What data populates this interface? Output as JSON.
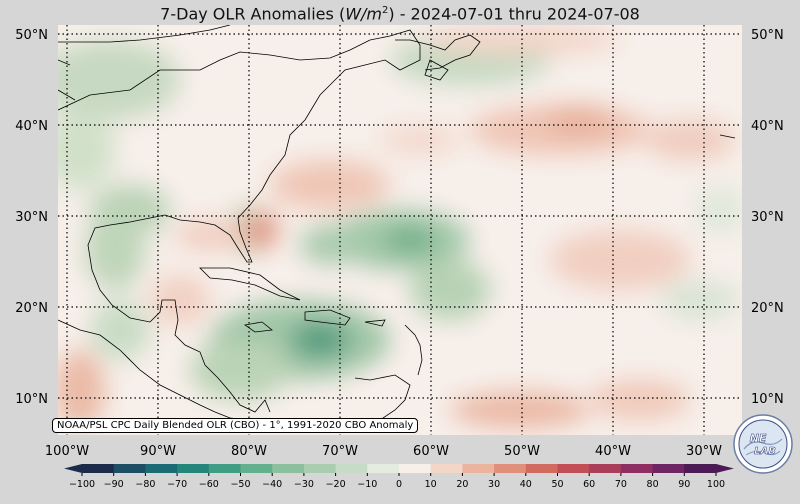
{
  "title": {
    "prefix": "7-Day OLR Anomalies (",
    "unit_base": "W/m",
    "unit_exp": "2",
    "suffix": ") - 2024-07-01 thru 2024-07-08"
  },
  "map": {
    "lat_labels": [
      "50°N",
      "40°N",
      "30°N",
      "20°N",
      "10°N"
    ],
    "lon_labels": [
      "100°W",
      "90°W",
      "80°W",
      "70°W",
      "60°W",
      "50°W",
      "40°W",
      "30°W"
    ],
    "land_outline_color": "#000000",
    "grid_style": "dotted black"
  },
  "credit": "NOAA/PSL CPC Daily Blended OLR (CBO) - 1°, 1991-2020 CBO Anomaly",
  "colorbar": {
    "ticks": [
      "−100",
      "−90",
      "−80",
      "−70",
      "−60",
      "−50",
      "−40",
      "−30",
      "−20",
      "−10",
      "0",
      "10",
      "20",
      "30",
      "40",
      "50",
      "60",
      "70",
      "80",
      "90",
      "100"
    ],
    "colors": [
      "#1d2b4a",
      "#1c4f66",
      "#1a6b73",
      "#24857a",
      "#3f9d84",
      "#63b08f",
      "#8bbf9d",
      "#aacdb0",
      "#c6dcc6",
      "#e4ece1",
      "#f7efe9",
      "#f3d6c8",
      "#eab49f",
      "#df8f7a",
      "#d16b60",
      "#c14f55",
      "#a93d5a",
      "#8e2e63",
      "#6f2464",
      "#4c1a55"
    ]
  },
  "logo": {
    "top": "NE",
    "bottom": "LAB",
    "icon": "nex-lab-globe-logo"
  }
}
